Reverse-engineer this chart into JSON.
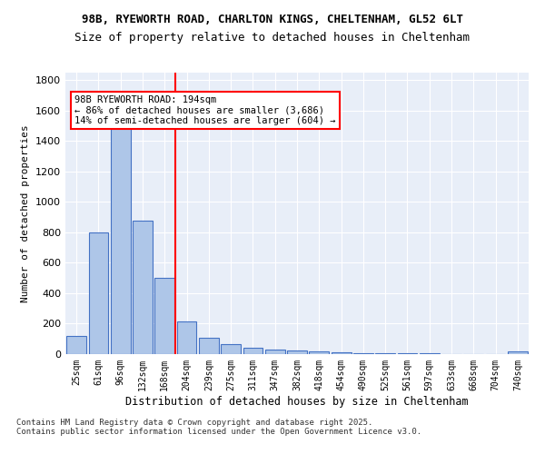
{
  "title_line1": "98B, RYEWORTH ROAD, CHARLTON KINGS, CHELTENHAM, GL52 6LT",
  "title_line2": "Size of property relative to detached houses in Cheltenham",
  "xlabel": "Distribution of detached houses by size in Cheltenham",
  "ylabel": "Number of detached properties",
  "categories": [
    "25sqm",
    "61sqm",
    "96sqm",
    "132sqm",
    "168sqm",
    "204sqm",
    "239sqm",
    "275sqm",
    "311sqm",
    "347sqm",
    "382sqm",
    "418sqm",
    "454sqm",
    "490sqm",
    "525sqm",
    "561sqm",
    "597sqm",
    "633sqm",
    "668sqm",
    "704sqm",
    "740sqm"
  ],
  "values": [
    120,
    800,
    1500,
    880,
    500,
    215,
    105,
    65,
    42,
    32,
    25,
    20,
    10,
    7,
    5,
    4,
    3,
    2,
    2,
    1,
    15
  ],
  "bar_color": "#aec6e8",
  "bar_edge_color": "#4472c4",
  "annotation_text": "98B RYEWORTH ROAD: 194sqm\n← 86% of detached houses are smaller (3,686)\n14% of semi-detached houses are larger (604) →",
  "vline_x": 4.5,
  "vline_color": "red",
  "annotation_box_color": "red",
  "ylim": [
    0,
    1850
  ],
  "yticks": [
    0,
    200,
    400,
    600,
    800,
    1000,
    1200,
    1400,
    1600,
    1800
  ],
  "background_color": "#e8eef8",
  "grid_color": "white",
  "footer": "Contains HM Land Registry data © Crown copyright and database right 2025.\nContains public sector information licensed under the Open Government Licence v3.0."
}
